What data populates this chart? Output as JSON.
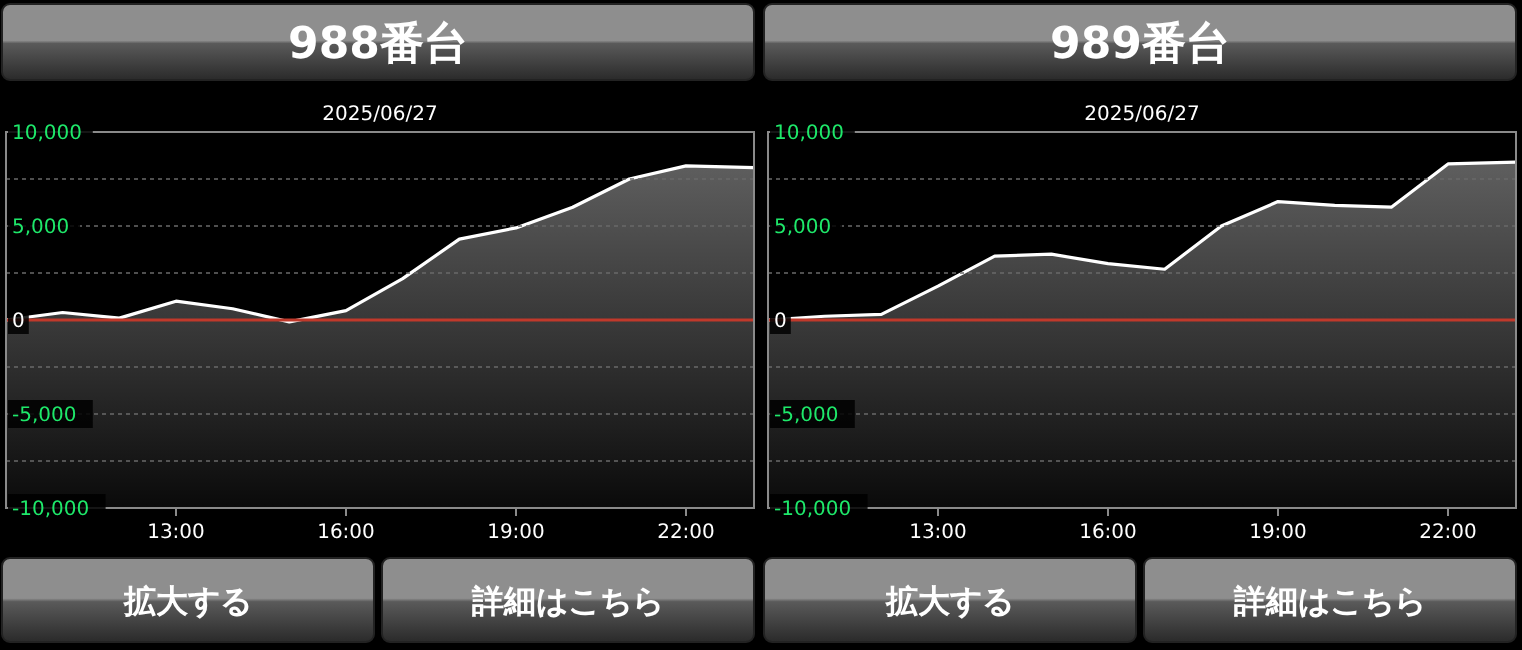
{
  "chart_data": [
    {
      "type": "area",
      "title": "988番台",
      "subtitle": "2025/06/27",
      "x": [
        10,
        11,
        12,
        13,
        14,
        15,
        16,
        17,
        18,
        19,
        20,
        21,
        22,
        23.2
      ],
      "xlim": [
        10,
        23.2
      ],
      "xticks": [
        {
          "value": 13,
          "label": "13:00"
        },
        {
          "value": 16,
          "label": "16:00"
        },
        {
          "value": 19,
          "label": "19:00"
        },
        {
          "value": 22,
          "label": "22:00"
        }
      ],
      "ylim": [
        -10000,
        10000
      ],
      "yticks": [
        {
          "value": -10000,
          "label": "-10,000"
        },
        {
          "value": -7500,
          "label": null
        },
        {
          "value": -5000,
          "label": "-5,000"
        },
        {
          "value": -2500,
          "label": null
        },
        0,
        {
          "value": 2500,
          "label": null
        },
        {
          "value": 5000,
          "label": "5,000"
        },
        {
          "value": 7500,
          "label": null
        },
        {
          "value": 10000,
          "label": "10,000"
        }
      ],
      "grid": "y",
      "marker": "none",
      "ref_lines": [
        {
          "axis": "y",
          "value": 0,
          "color": "#c0392b"
        }
      ],
      "annotations": [
        "拡大する",
        "詳細はこちら"
      ],
      "series": [
        {
          "color": "#ffffff",
          "values": [
            0,
            400,
            100,
            1000,
            600,
            -100,
            500,
            2200,
            4300,
            4900,
            6000,
            7500,
            8200,
            8100
          ]
        }
      ]
    },
    {
      "type": "area",
      "title": "989番台",
      "subtitle": "2025/06/27",
      "x": [
        10,
        11,
        12,
        13,
        14,
        15,
        16,
        17,
        18,
        19,
        20,
        21,
        22,
        23.2
      ],
      "xlim": [
        10,
        23.2
      ],
      "xticks": [
        {
          "value": 13,
          "label": "13:00"
        },
        {
          "value": 16,
          "label": "16:00"
        },
        {
          "value": 19,
          "label": "19:00"
        },
        {
          "value": 22,
          "label": "22:00"
        }
      ],
      "ylim": [
        -10000,
        10000
      ],
      "yticks": [
        {
          "value": -10000,
          "label": "-10,000"
        },
        {
          "value": -7500,
          "label": null
        },
        {
          "value": -5000,
          "label": "-5,000"
        },
        {
          "value": -2500,
          "label": null
        },
        0,
        {
          "value": 2500,
          "label": null
        },
        {
          "value": 5000,
          "label": "5,000"
        },
        {
          "value": 7500,
          "label": null
        },
        {
          "value": 10000,
          "label": "10,000"
        }
      ],
      "grid": "y",
      "marker": "none",
      "ref_lines": [
        {
          "axis": "y",
          "value": 0,
          "color": "#c0392b"
        }
      ],
      "annotations": [
        "拡大する",
        "詳細はこちら"
      ],
      "series": [
        {
          "color": "#ffffff",
          "values": [
            0,
            200,
            300,
            1800,
            3400,
            3500,
            3000,
            2700,
            5000,
            6300,
            6100,
            6000,
            8300,
            8400
          ]
        }
      ]
    }
  ]
}
